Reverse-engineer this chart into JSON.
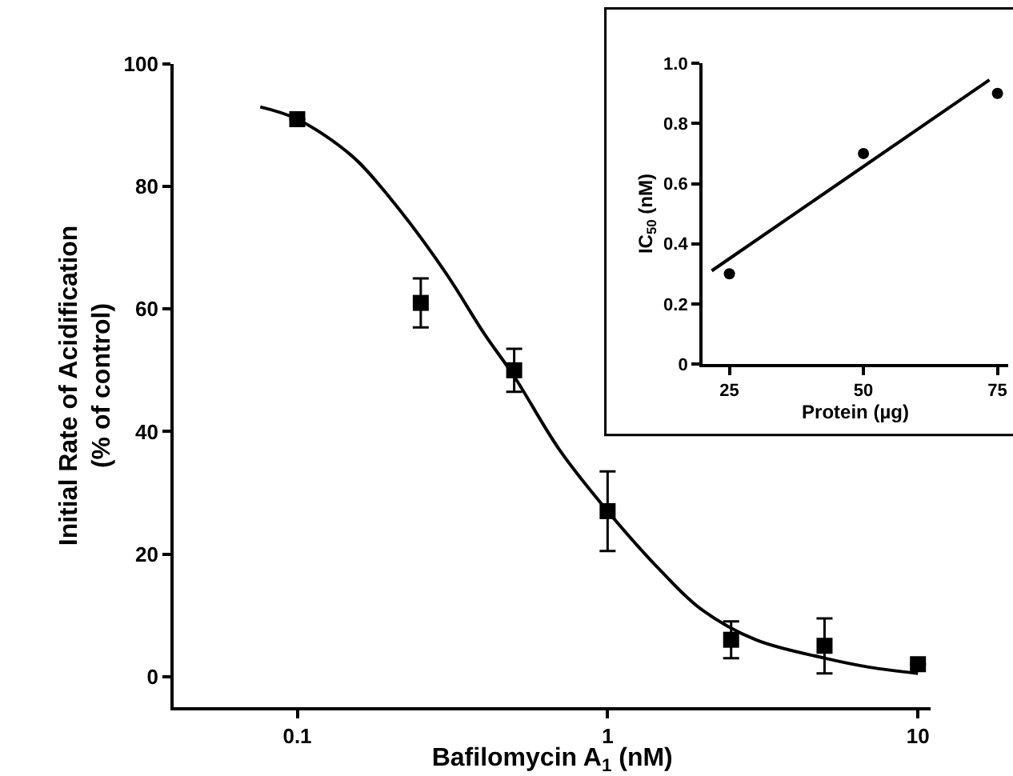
{
  "chart_data": [
    {
      "type": "scatter",
      "xlabel": "Bafilomycin A$_{1}$ (nM)",
      "ylabel": "Initial Rate of Acidification\n(% of control)",
      "log": "x",
      "xlim": [
        0.04,
        11
      ],
      "xticks": [
        0.1,
        1,
        10
      ],
      "ylim": [
        -5,
        100
      ],
      "yticks": [
        0,
        20,
        40,
        60,
        80,
        100
      ],
      "grid": false,
      "series": [
        {
          "marker": "square",
          "color": "#000000",
          "x": [
            0.1,
            0.25,
            0.5,
            1,
            2.5,
            5,
            10
          ],
          "values": [
            91,
            61,
            50,
            27,
            6,
            5,
            2
          ],
          "errors": [
            null,
            4,
            3.5,
            6.5,
            3,
            4.5,
            null
          ]
        },
        {
          "type": "line",
          "marker": "none",
          "color": "#000000",
          "x": [
            0.076,
            0.1,
            0.15,
            0.2,
            0.3,
            0.4,
            0.5,
            0.7,
            1,
            1.5,
            2,
            3,
            5,
            7,
            10
          ],
          "values": [
            93,
            91,
            85,
            78,
            66,
            56,
            49,
            37,
            27,
            17,
            11,
            6,
            3,
            1.5,
            0.5
          ]
        }
      ]
    },
    {
      "type": "scatter",
      "xlabel": "Protein (µg)",
      "ylabel": "IC$_{50}$ (nM)",
      "xlim": [
        20,
        77
      ],
      "xticks": [
        25,
        50,
        75
      ],
      "ylim": [
        0,
        1
      ],
      "yticks": [
        0,
        0.2,
        0.4,
        0.6,
        0.8,
        {
          "value": 1,
          "label": "1.0"
        }
      ],
      "grid": false,
      "series": [
        {
          "marker": "circle",
          "color": "#000000",
          "x": [
            25,
            50,
            75
          ],
          "values": [
            0.3,
            0.7,
            0.9
          ]
        },
        {
          "type": "line",
          "marker": "none",
          "color": "#000000",
          "x": [
            21.7,
            73.5
          ],
          "values": [
            0.31,
            0.945
          ]
        }
      ]
    }
  ]
}
